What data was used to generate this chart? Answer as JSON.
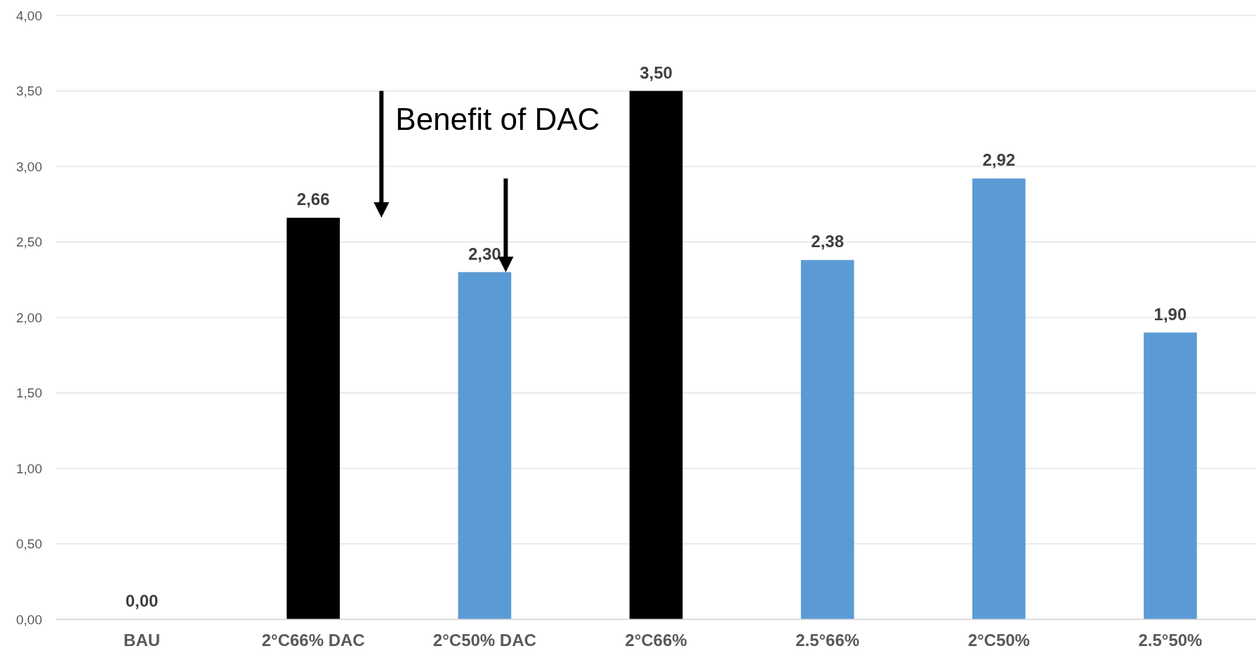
{
  "chart_data": {
    "type": "bar",
    "categories": [
      "BAU",
      "2°C66% DAC",
      "2°C50% DAC",
      "2°C66%",
      "2.5°66%",
      "2°C50%",
      "2.5°50%"
    ],
    "values": [
      0,
      2.66,
      2.3,
      3.5,
      2.38,
      2.92,
      1.9
    ],
    "colors": [
      "#000000",
      "#000000",
      "#5b9bd5",
      "#000000",
      "#5b9bd5",
      "#5b9bd5",
      "#5b9bd5"
    ],
    "value_labels": [
      "0,00",
      "2,66",
      "2,30",
      "3,50",
      "2,38",
      "2,92",
      "1,90"
    ],
    "ylim": [
      0,
      4
    ],
    "yticks": [
      {
        "value": 0,
        "label": "0,00"
      },
      {
        "value": 0.5,
        "label": "0,50"
      },
      {
        "value": 1,
        "label": "1,00"
      },
      {
        "value": 1.5,
        "label": "1,50"
      },
      {
        "value": 2,
        "label": "2,00"
      },
      {
        "value": 2.5,
        "label": "2,50"
      },
      {
        "value": 3,
        "label": "3,00"
      },
      {
        "value": 3.5,
        "label": "3,50"
      },
      {
        "value": 4,
        "label": "4,00"
      }
    ],
    "grid": "y",
    "annotations": [
      "Benefit of DAC"
    ]
  }
}
